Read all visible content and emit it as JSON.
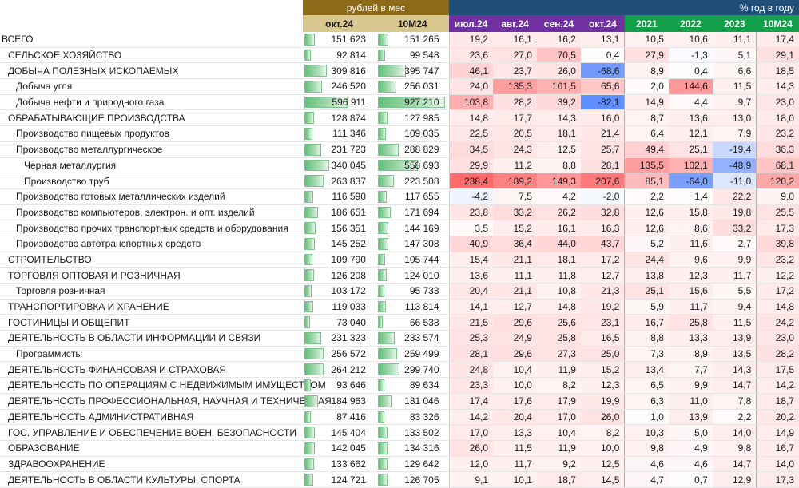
{
  "header": {
    "group_rub": "рублей в мес",
    "group_pct": "% год в году",
    "col_oct": "окт.24",
    "col_10m": "10M24",
    "months": [
      "июл.24",
      "авг.24",
      "сен.24",
      "окт.24"
    ],
    "years": [
      "2021",
      "2022",
      "2023"
    ],
    "last": "10M24"
  },
  "colors": {
    "rub_header": "#8d6a1a",
    "pct_header": "#1f4e79",
    "month_header": "#7030a0",
    "year_header": "#14a04a",
    "bar": "#63be7b",
    "positive_heat": "#f8696b",
    "negative_heat": "#5a8ac6"
  },
  "rows": [
    {
      "name": "ВСЕГО",
      "level": 0,
      "oct": "151 623",
      "m10": "151 265",
      "oct_fill": 0.16,
      "m10_fill": 0.16,
      "p": [
        "19,2",
        "16,1",
        "16,2",
        "13,1",
        "10,5",
        "10,6",
        "11,1",
        "17,4"
      ]
    },
    {
      "name": "СЕЛЬСКОЕ ХОЗЯЙСТВО",
      "level": 1,
      "oct": "92 814",
      "m10": "99 548",
      "oct_fill": 0.1,
      "m10_fill": 0.11,
      "p": [
        "23,6",
        "27,0",
        "70,5",
        "0,4",
        "27,9",
        "-1,3",
        "5,1",
        "29,1"
      ]
    },
    {
      "name": "ДОБЫЧА ПОЛЕЗНЫХ ИСКОПАЕМЫХ",
      "level": 1,
      "oct": "309 816",
      "m10": "395 747",
      "oct_fill": 0.33,
      "m10_fill": 0.42,
      "p": [
        "46,1",
        "23,7",
        "26,0",
        "-68,6",
        "8,9",
        "0,4",
        "6,6",
        "18,5"
      ]
    },
    {
      "name": "Добыча угля",
      "level": 2,
      "oct": "246 520",
      "m10": "256 031",
      "oct_fill": 0.26,
      "m10_fill": 0.27,
      "p": [
        "24,0",
        "135,3",
        "101,5",
        "65,6",
        "2,0",
        "144,6",
        "11,5",
        "14,3"
      ]
    },
    {
      "name": "Добыча нефти и природного газа",
      "level": 2,
      "oct": "596 911",
      "m10": "927 210",
      "oct_fill": 0.64,
      "m10_fill": 1.0,
      "p": [
        "103,8",
        "28,2",
        "39,2",
        "-82,1",
        "14,9",
        "4,4",
        "9,7",
        "23,0"
      ]
    },
    {
      "name": "ОБРАБАТЫВАЮЩИЕ ПРОИЗВОДСТВА",
      "level": 1,
      "oct": "128 874",
      "m10": "127 985",
      "oct_fill": 0.14,
      "m10_fill": 0.14,
      "p": [
        "14,8",
        "17,7",
        "14,3",
        "16,0",
        "8,7",
        "13,6",
        "13,0",
        "18,0"
      ]
    },
    {
      "name": "Производство пищевых продуктов",
      "level": 2,
      "oct": "111 346",
      "m10": "109 035",
      "oct_fill": 0.12,
      "m10_fill": 0.12,
      "p": [
        "22,5",
        "20,5",
        "18,1",
        "21,4",
        "6,4",
        "12,1",
        "7,9",
        "23,2"
      ]
    },
    {
      "name": "Производство металлургическое",
      "level": 2,
      "oct": "231 723",
      "m10": "288 829",
      "oct_fill": 0.25,
      "m10_fill": 0.31,
      "p": [
        "34,5",
        "24,3",
        "12,5",
        "25,7",
        "49,4",
        "25,1",
        "-19,4",
        "36,3"
      ]
    },
    {
      "name": "Черная металлургия",
      "level": 3,
      "oct": "340 045",
      "m10": "558 693",
      "oct_fill": 0.37,
      "m10_fill": 0.6,
      "p": [
        "29,9",
        "11,2",
        "8,8",
        "28,1",
        "135,5",
        "102,1",
        "-48,9",
        "68,1"
      ]
    },
    {
      "name": "Производство труб",
      "level": 3,
      "oct": "263 837",
      "m10": "223 508",
      "oct_fill": 0.28,
      "m10_fill": 0.24,
      "p": [
        "238,4",
        "189,2",
        "149,3",
        "207,6",
        "85,1",
        "-64,0",
        "-11,0",
        "120,2"
      ]
    },
    {
      "name": "Производство готовых металлических изделий",
      "level": 2,
      "oct": "116 590",
      "m10": "117 655",
      "oct_fill": 0.13,
      "m10_fill": 0.13,
      "p": [
        "-4,2",
        "7,5",
        "4,2",
        "-2,0",
        "2,2",
        "1,4",
        "22,2",
        "9,0"
      ]
    },
    {
      "name": "Производство компьютеров, электрон. и опт. изделий",
      "level": 2,
      "oct": "186 651",
      "m10": "171 694",
      "oct_fill": 0.2,
      "m10_fill": 0.19,
      "p": [
        "23,8",
        "33,2",
        "26,2",
        "32,8",
        "12,6",
        "15,8",
        "19,8",
        "25,5"
      ]
    },
    {
      "name": "Производство прочих транспортных средств и оборудования",
      "level": 2,
      "oct": "156 351",
      "m10": "144 169",
      "oct_fill": 0.17,
      "m10_fill": 0.16,
      "p": [
        "3,5",
        "15,2",
        "16,1",
        "16,3",
        "12,6",
        "8,6",
        "33,2",
        "17,3"
      ]
    },
    {
      "name": "Производство автотранспортных средств",
      "level": 2,
      "oct": "145 252",
      "m10": "147 308",
      "oct_fill": 0.16,
      "m10_fill": 0.16,
      "p": [
        "40,9",
        "36,4",
        "44,0",
        "43,7",
        "5,2",
        "11,6",
        "2,7",
        "39,8"
      ]
    },
    {
      "name": "СТРОИТЕЛЬСТВО",
      "level": 1,
      "oct": "109 790",
      "m10": "105 744",
      "oct_fill": 0.12,
      "m10_fill": 0.11,
      "p": [
        "15,4",
        "21,1",
        "18,1",
        "17,2",
        "24,4",
        "9,6",
        "9,9",
        "23,2"
      ]
    },
    {
      "name": "ТОРГОВЛЯ ОПТОВАЯ И РОЗНИЧНАЯ",
      "level": 1,
      "oct": "126 208",
      "m10": "124 010",
      "oct_fill": 0.14,
      "m10_fill": 0.13,
      "p": [
        "13,6",
        "11,1",
        "11,8",
        "12,7",
        "13,8",
        "12,3",
        "11,7",
        "12,2"
      ]
    },
    {
      "name": "Торговля розничная",
      "level": 2,
      "oct": "103 172",
      "m10": "95 733",
      "oct_fill": 0.11,
      "m10_fill": 0.1,
      "p": [
        "20,4",
        "21,1",
        "10,8",
        "21,3",
        "25,1",
        "15,6",
        "5,5",
        "17,2"
      ]
    },
    {
      "name": "ТРАНСПОРТИРОВКА И ХРАНЕНИЕ",
      "level": 1,
      "oct": "119 033",
      "m10": "113 814",
      "oct_fill": 0.13,
      "m10_fill": 0.12,
      "p": [
        "14,1",
        "12,7",
        "14,8",
        "19,2",
        "5,9",
        "11,7",
        "9,4",
        "14,8"
      ]
    },
    {
      "name": "ГОСТИНИЦЫ И ОБЩЕПИТ",
      "level": 1,
      "oct": "73 040",
      "m10": "66 538",
      "oct_fill": 0.08,
      "m10_fill": 0.07,
      "p": [
        "21,5",
        "29,6",
        "25,6",
        "23,1",
        "16,7",
        "25,8",
        "11,5",
        "24,2"
      ]
    },
    {
      "name": "ДЕЯТЕЛЬНОСТЬ В ОБЛАСТИ ИНФОРМАЦИИ И СВЯЗИ",
      "level": 1,
      "oct": "231 323",
      "m10": "233 574",
      "oct_fill": 0.25,
      "m10_fill": 0.25,
      "p": [
        "25,3",
        "24,9",
        "25,8",
        "16,5",
        "8,8",
        "13,3",
        "13,9",
        "23,0"
      ]
    },
    {
      "name": "Программисты",
      "level": 2,
      "oct": "256 572",
      "m10": "259 499",
      "oct_fill": 0.28,
      "m10_fill": 0.28,
      "p": [
        "28,1",
        "29,6",
        "27,3",
        "25,0",
        "7,3",
        "8,9",
        "13,5",
        "28,2"
      ]
    },
    {
      "name": "ДЕЯТЕЛЬНОСТЬ ФИНАНСОВАЯ И СТРАХОВАЯ",
      "level": 1,
      "oct": "264 212",
      "m10": "299 740",
      "oct_fill": 0.28,
      "m10_fill": 0.32,
      "p": [
        "24,8",
        "10,4",
        "11,9",
        "15,2",
        "13,4",
        "7,7",
        "14,3",
        "17,5"
      ]
    },
    {
      "name": "ДЕЯТЕЛЬНОСТЬ ПО ОПЕРАЦИЯМ С НЕДВИЖИМЫМ ИМУЩЕСТВОМ",
      "level": 1,
      "oct": "93 646",
      "m10": "89 634",
      "oct_fill": 0.1,
      "m10_fill": 0.1,
      "p": [
        "23,3",
        "10,0",
        "8,2",
        "12,3",
        "6,5",
        "9,9",
        "14,7",
        "14,2"
      ]
    },
    {
      "name": "ДЕЯТЕЛЬНОСТЬ ПРОФЕССИОНАЛЬНАЯ, НАУЧНАЯ И ТЕХНИЧЕСКАЯ",
      "level": 1,
      "oct": "184 963",
      "m10": "181 046",
      "oct_fill": 0.2,
      "m10_fill": 0.2,
      "p": [
        "17,4",
        "17,6",
        "17,9",
        "19,9",
        "6,3",
        "11,0",
        "7,8",
        "18,7"
      ]
    },
    {
      "name": "ДЕЯТЕЛЬНОСТЬ АДМИНИСТРАТИВНАЯ",
      "level": 1,
      "oct": "87 416",
      "m10": "83 326",
      "oct_fill": 0.09,
      "m10_fill": 0.09,
      "p": [
        "14,2",
        "20,4",
        "17,0",
        "26,0",
        "1,0",
        "13,9",
        "2,2",
        "20,2"
      ]
    },
    {
      "name": "ГОС. УПРАВЛЕНИЕ И ОБЕСПЕЧЕНИЕ ВОЕН. БЕЗОПАСНОСТИ",
      "level": 1,
      "oct": "145 404",
      "m10": "133 502",
      "oct_fill": 0.16,
      "m10_fill": 0.14,
      "p": [
        "17,0",
        "13,3",
        "10,4",
        "8,2",
        "10,3",
        "5,0",
        "14,0",
        "14,9"
      ]
    },
    {
      "name": "ОБРАЗОВАНИЕ",
      "level": 1,
      "oct": "142 045",
      "m10": "134 316",
      "oct_fill": 0.15,
      "m10_fill": 0.14,
      "p": [
        "26,0",
        "11,5",
        "11,9",
        "10,0",
        "9,8",
        "4,9",
        "9,8",
        "16,7"
      ]
    },
    {
      "name": "ЗДРАВООХРАНЕНИЕ",
      "level": 1,
      "oct": "133 662",
      "m10": "129 642",
      "oct_fill": 0.14,
      "m10_fill": 0.14,
      "p": [
        "12,0",
        "11,7",
        "9,2",
        "12,5",
        "4,6",
        "4,6",
        "14,7",
        "14,0"
      ]
    },
    {
      "name": "ДЕЯТЕЛЬНОСТЬ В ОБЛАСТИ КУЛЬТУРЫ, СПОРТА",
      "level": 1,
      "oct": "124 721",
      "m10": "126 705",
      "oct_fill": 0.13,
      "m10_fill": 0.14,
      "p": [
        "9,1",
        "10,1",
        "18,7",
        "14,5",
        "4,7",
        "0,7",
        "12,9",
        "17,3"
      ]
    }
  ]
}
